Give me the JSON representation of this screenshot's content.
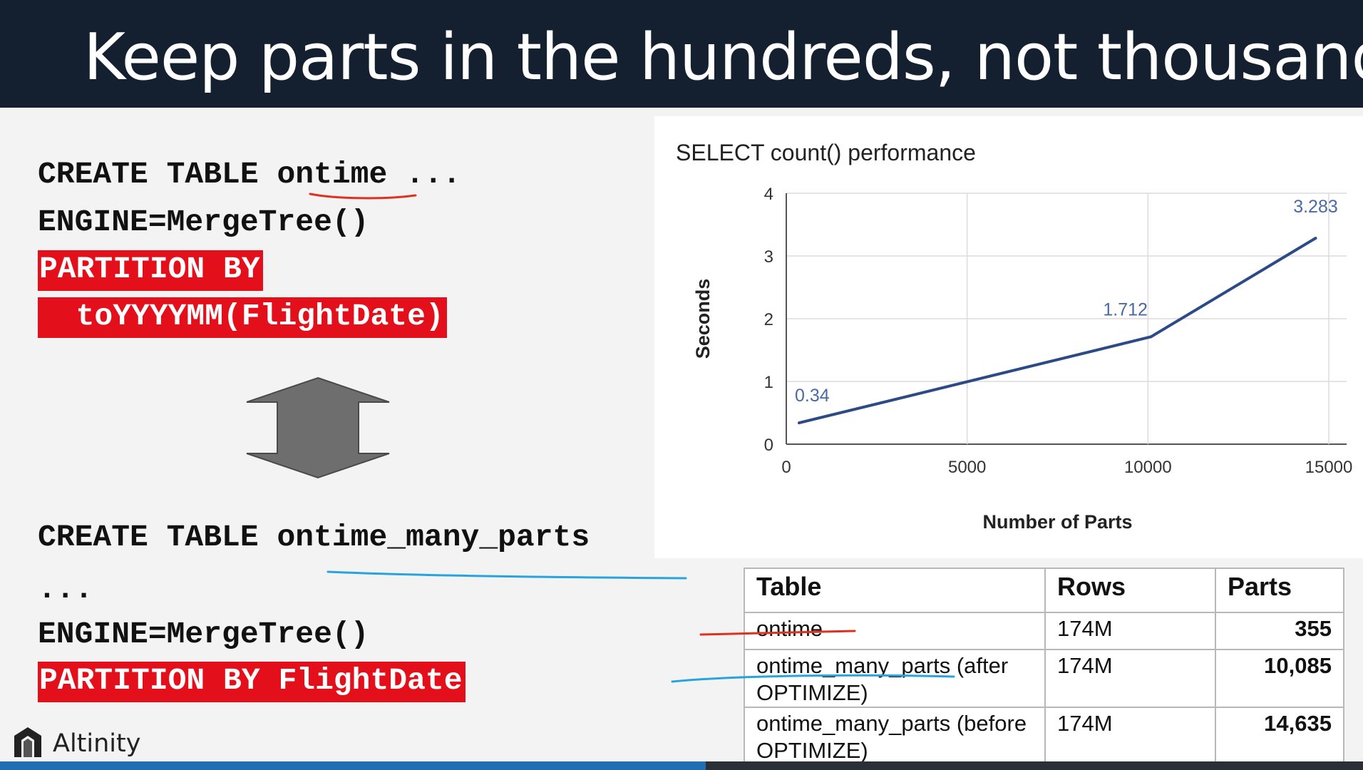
{
  "slide": {
    "title": "Keep parts in the hundreds, not thousands"
  },
  "code_top": {
    "line1_prefix": "CREATE TABLE ",
    "line1_name": "ontime",
    "line1_suffix": " ...",
    "line2": "ENGINE=MergeTree()",
    "line3": "PARTITION BY",
    "line4": "  toYYYYMM(FlightDate)"
  },
  "code_bottom": {
    "line1_prefix": "CREATE TABLE ",
    "line1_name": "ontime_many_parts",
    "line2": "...",
    "line3": "ENGINE=MergeTree()",
    "line4": "PARTITION BY FlightDate"
  },
  "chart_data": {
    "type": "line",
    "title": "SELECT count() performance",
    "xlabel": "Number of Parts",
    "ylabel": "Seconds",
    "x": [
      355,
      10085,
      14635
    ],
    "y": [
      0.34,
      1.712,
      3.283
    ],
    "data_labels": [
      "0.34",
      "1.712",
      "3.283"
    ],
    "xlim": [
      0,
      15000
    ],
    "ylim": [
      0,
      4
    ],
    "x_ticks": [
      0,
      5000,
      10000,
      15000
    ],
    "y_ticks": [
      0,
      1,
      2,
      3,
      4
    ],
    "grid": true,
    "line_color": "#2c4a85",
    "label_color": "#4a6aa5"
  },
  "table": {
    "headers": [
      "Table",
      "Rows",
      "Parts"
    ],
    "rows": [
      {
        "name": "ontime",
        "rows": "174M",
        "parts": "355"
      },
      {
        "name": "ontime_many_parts (after OPTIMIZE)",
        "rows": "174M",
        "parts": "10,085"
      },
      {
        "name": "ontime_many_parts (before OPTIMIZE)",
        "rows": "174M",
        "parts": "14,635"
      }
    ]
  },
  "footer": {
    "brand": "Altinity"
  },
  "colors": {
    "header_bg": "#142030",
    "highlight": "#e3101b",
    "red_mark": "#e0301e",
    "blue_mark": "#29a3de"
  }
}
